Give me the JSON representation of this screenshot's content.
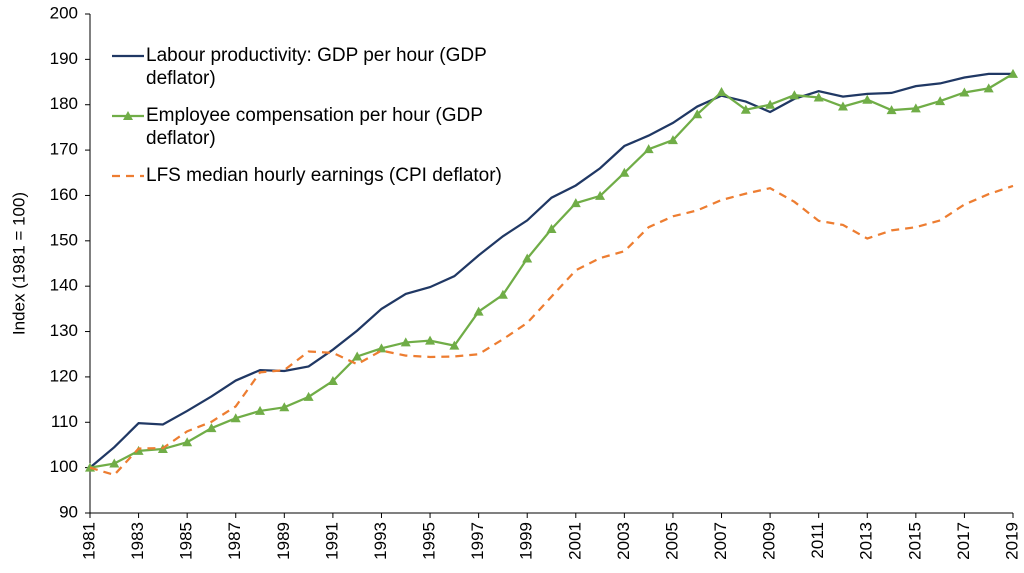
{
  "chart_data": {
    "type": "line",
    "y_label": "Index (1981 = 100)",
    "x": [
      1981,
      1982,
      1983,
      1984,
      1985,
      1986,
      1987,
      1988,
      1989,
      1990,
      1991,
      1992,
      1993,
      1994,
      1995,
      1996,
      1997,
      1998,
      1999,
      2000,
      2001,
      2002,
      2003,
      2004,
      2005,
      2006,
      2007,
      2008,
      2009,
      2010,
      2011,
      2012,
      2013,
      2014,
      2015,
      2016,
      2017,
      2018,
      2019
    ],
    "xlim": [
      1981,
      2019
    ],
    "xticks": [
      1981,
      1983,
      1985,
      1987,
      1989,
      1991,
      1993,
      1995,
      1997,
      1999,
      2001,
      2003,
      2005,
      2007,
      2009,
      2011,
      2013,
      2015,
      2017,
      2019
    ],
    "ylim": [
      90,
      200
    ],
    "yticks": [
      90,
      100,
      110,
      120,
      130,
      140,
      150,
      160,
      170,
      180,
      190,
      200
    ],
    "grid": false,
    "legend": "top-left",
    "series": [
      {
        "name": "Labour productivity: GDP per hour (GDP deflator)",
        "color": "#203864",
        "line_style": "solid",
        "marker": "none",
        "values": [
          100,
          104.5,
          109.8,
          109.5,
          112.5,
          115.7,
          119.2,
          121.5,
          121.3,
          122.3,
          126,
          130.2,
          135,
          138.3,
          139.8,
          142.2,
          146.8,
          151,
          154.5,
          159.5,
          162.2,
          166,
          170.9,
          173.2,
          176,
          179.6,
          182,
          180.7,
          178.4,
          181.3,
          183,
          181.8,
          182.4,
          182.6,
          184.1,
          184.7,
          186,
          186.8,
          186.8
        ]
      },
      {
        "name": "Employee compensation per hour (GDP deflator)",
        "color": "#70ad47",
        "line_style": "solid",
        "marker": "triangle",
        "values": [
          100,
          100.9,
          103.7,
          104.1,
          105.6,
          108.7,
          110.9,
          112.5,
          113.3,
          115.6,
          119.1,
          124.5,
          126.3,
          127.6,
          128,
          126.9,
          134.4,
          138.1,
          146.1,
          152.6,
          158.3,
          159.9,
          165,
          170.2,
          172.2,
          177.9,
          182.8,
          178.9,
          180,
          182.1,
          181.6,
          179.6,
          181.1,
          178.8,
          179.2,
          180.8,
          182.7,
          183.6,
          186.8
        ]
      },
      {
        "name": "LFS median hourly earnings (CPI deflator)",
        "color": "#ed7d31",
        "line_style": "dashed",
        "marker": "none",
        "values": [
          100,
          98.4,
          104.2,
          104.3,
          108,
          110.1,
          113.5,
          121,
          121.5,
          125.6,
          125.3,
          122.8,
          125.8,
          124.7,
          124.4,
          124.5,
          125,
          128.3,
          131.9,
          137.7,
          143.5,
          146.2,
          147.7,
          153,
          155.4,
          156.7,
          159,
          160.4,
          161.6,
          158.6,
          154.4,
          153.5,
          150.5,
          152.3,
          153,
          154.5,
          158,
          160.3,
          162.1
        ]
      }
    ]
  }
}
